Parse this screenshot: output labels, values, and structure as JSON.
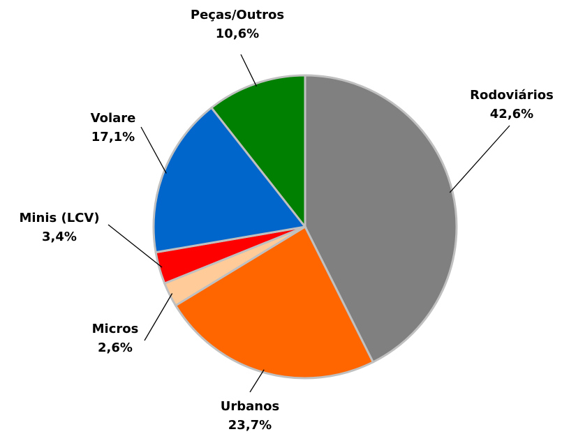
{
  "chart_data": {
    "type": "pie",
    "categories": [
      "Rodoviários",
      "Urbanos",
      "Micros",
      "Minis (LCV)",
      "Volare",
      "Peças/Outros"
    ],
    "values": [
      42.6,
      23.7,
      2.6,
      3.4,
      17.1,
      10.6
    ],
    "value_labels": [
      "42,6%",
      "23,7%",
      "2,6%",
      "3,4%",
      "17,1%",
      "10,6%"
    ],
    "colors": [
      "#808080",
      "#ff6600",
      "#ffcc99",
      "#ff0000",
      "#0066cc",
      "#008000"
    ]
  }
}
